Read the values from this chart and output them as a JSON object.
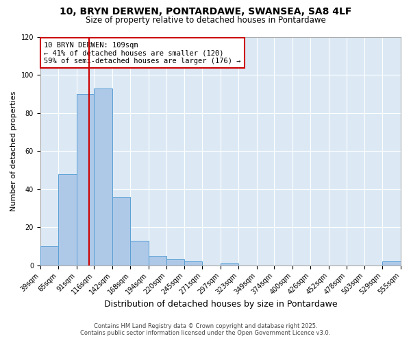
{
  "title": "10, BRYN DERWEN, PONTARDAWE, SWANSEA, SA8 4LF",
  "subtitle": "Size of property relative to detached houses in Pontardawe",
  "xlabel": "Distribution of detached houses by size in Pontardawe",
  "ylabel": "Number of detached properties",
  "bin_edges": [
    39,
    65,
    91,
    116,
    142,
    168,
    194,
    220,
    245,
    271,
    297,
    323,
    349,
    374,
    400,
    426,
    452,
    478,
    503,
    529,
    555
  ],
  "bar_heights": [
    10,
    48,
    90,
    93,
    36,
    13,
    5,
    3,
    2,
    0,
    1,
    0,
    0,
    0,
    0,
    0,
    0,
    0,
    0,
    2
  ],
  "bar_color": "#aec9e8",
  "bar_edge_color": "#5a9fd4",
  "bg_color": "#dce9f5",
  "grid_color": "#ffffff",
  "vline_x": 109,
  "vline_color": "#cc0000",
  "annotation_line1": "10 BRYN DERWEN: 109sqm",
  "annotation_line2": "← 41% of detached houses are smaller (120)",
  "annotation_line3": "59% of semi-detached houses are larger (176) →",
  "annotation_box_color": "#ffffff",
  "annotation_box_edge_color": "#cc0000",
  "ylim": [
    0,
    120
  ],
  "yticks": [
    0,
    20,
    40,
    60,
    80,
    100,
    120
  ],
  "footer_line1": "Contains HM Land Registry data © Crown copyright and database right 2025.",
  "footer_line2": "Contains public sector information licensed under the Open Government Licence v3.0.",
  "title_fontsize": 10,
  "subtitle_fontsize": 8.5,
  "xlabel_fontsize": 9,
  "ylabel_fontsize": 8,
  "tick_fontsize": 7,
  "annotation_fontsize": 7.5,
  "footer_fontsize": 6
}
